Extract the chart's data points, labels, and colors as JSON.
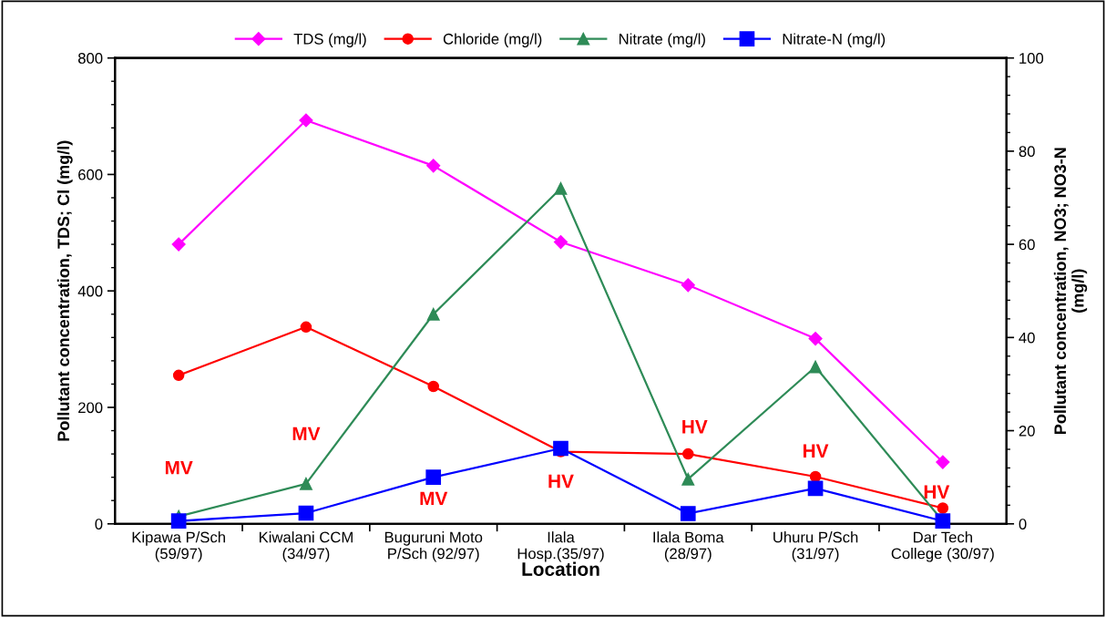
{
  "chart_data": {
    "type": "line",
    "categories": [
      "Kipawa P/Sch\n(59/97)",
      "Kiwalani CCM\n(34/97)",
      "Buguruni Moto\nP/Sch (92/97)",
      "Ilala\nHosp.(35/97)",
      "Ilala Boma\n(28/97)",
      "Uhuru P/Sch\n(31/97)",
      "Dar Tech\nCollege (30/97)"
    ],
    "series": [
      {
        "name": "TDS (mg/l)",
        "color": "#ff00ff",
        "marker": "diamond",
        "values": [
          480,
          693,
          615,
          484,
          410,
          318,
          106
        ]
      },
      {
        "name": "Chloride (mg/l)",
        "color": "#ff0000",
        "marker": "circle",
        "values": [
          255,
          338,
          236,
          124,
          120,
          81,
          27
        ]
      },
      {
        "name": "Nitrate (mg/l)",
        "color": "#2e8b57",
        "marker": "triangle",
        "axis": "y2",
        "values": [
          1.6,
          8.6,
          45,
          72,
          9.6,
          33.7,
          0.6
        ]
      },
      {
        "name": "Nitrate-N (mg/l)",
        "color": "#0000ff",
        "marker": "square",
        "axis": "y2",
        "values": [
          0.6,
          2.3,
          10,
          16.2,
          2.2,
          7.6,
          0.6
        ]
      }
    ],
    "xlabel": "Location",
    "ylabel": "Pollutant concentration, TDS; Cl (mg/l)",
    "y2label": "Pollutant concentration, NO3; NO3-N\n(mg/l)",
    "ylim": [
      0,
      800
    ],
    "yticks": [
      0,
      200,
      400,
      600,
      800
    ],
    "y2lim": [
      0,
      100
    ],
    "y2ticks": [
      0,
      20,
      40,
      60,
      80,
      100
    ],
    "annotations": [
      "MV",
      "MV",
      "MV",
      "HV",
      "HV",
      "HV",
      "HV"
    ],
    "legend": "top",
    "grid": false,
    "line_style": "solid"
  }
}
